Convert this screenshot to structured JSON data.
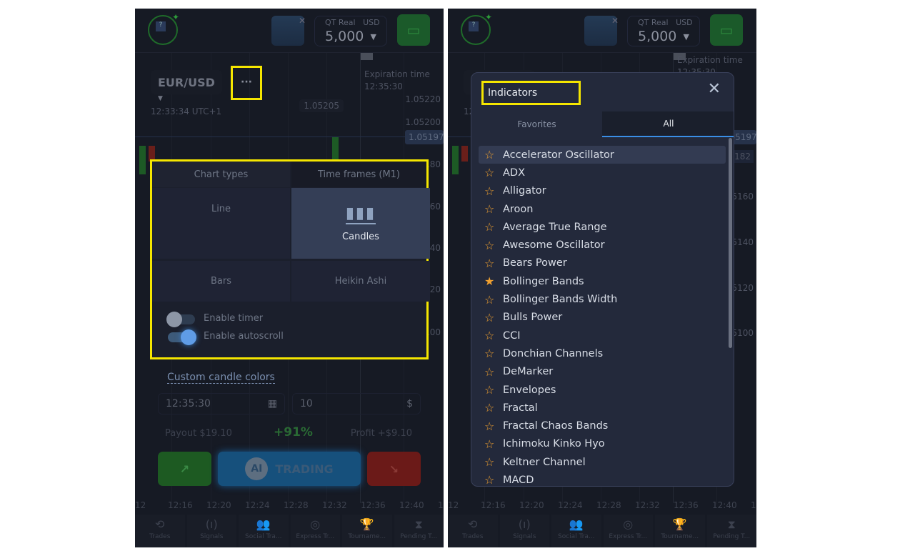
{
  "header": {
    "balance_label": "QT Real",
    "currency": "USD",
    "balance": "5,000"
  },
  "chart": {
    "pair": "EUR/USD",
    "more_label": "···",
    "time": "12:33:34 UTC+1",
    "expiration_label": "Expiration time",
    "expiration_time": "12:35:30",
    "price_marker": "1.05205",
    "current_price": "1.05197",
    "prices": [
      "1.05220",
      "1.05200",
      "1.05180",
      "1.05160",
      "1.05140",
      "1.05120",
      "1.05100"
    ],
    "right_prices": [
      "1.05182",
      "1.05160",
      "1.05140",
      "1.05120",
      "1.05100"
    ],
    "time_axis": [
      "12",
      "12:16",
      "12:20",
      "12:24",
      "12:28",
      "12:32",
      "12:36",
      "12:40",
      "12:"
    ]
  },
  "chart_settings": {
    "tab_chart_types": "Chart types",
    "tab_time_frames": "Time frames (M1)",
    "types": [
      "Line",
      "Candles",
      "Bars",
      "Heikin Ashi"
    ],
    "selected_type": "Candles",
    "enable_timer": "Enable timer",
    "enable_timer_on": false,
    "enable_autoscroll": "Enable autoscroll",
    "enable_autoscroll_on": true
  },
  "custom_candle_colors": "Custom candle colors",
  "trade": {
    "time": "12:35:30",
    "amount": "10",
    "payout_label": "Payout",
    "payout": "$19.10",
    "percent": "+91%",
    "profit_label": "Profit",
    "profit": "+$9.10",
    "ai_label": "AI",
    "trading_label": "TRADING"
  },
  "nav": [
    "Trades",
    "Signals",
    "Social Tra...",
    "Express Tr...",
    "Tourname...",
    "Pending T..."
  ],
  "indicators": {
    "title": "Indicators",
    "tabs": [
      "Favorites",
      "All"
    ],
    "active_tab": "All",
    "items": [
      {
        "label": "Accelerator Oscillator",
        "fav": false
      },
      {
        "label": "ADX",
        "fav": false
      },
      {
        "label": "Alligator",
        "fav": false
      },
      {
        "label": "Aroon",
        "fav": false
      },
      {
        "label": "Average True Range",
        "fav": false
      },
      {
        "label": "Awesome Oscillator",
        "fav": false
      },
      {
        "label": "Bears Power",
        "fav": false
      },
      {
        "label": "Bollinger Bands",
        "fav": true
      },
      {
        "label": "Bollinger Bands Width",
        "fav": false
      },
      {
        "label": "Bulls Power",
        "fav": false
      },
      {
        "label": "CCI",
        "fav": false
      },
      {
        "label": "Donchian Channels",
        "fav": false
      },
      {
        "label": "DeMarker",
        "fav": false
      },
      {
        "label": "Envelopes",
        "fav": false
      },
      {
        "label": "Fractal",
        "fav": false
      },
      {
        "label": "Fractal Chaos Bands",
        "fav": false
      },
      {
        "label": "Ichimoku Kinko Hyo",
        "fav": false
      },
      {
        "label": "Keltner Channel",
        "fav": false
      },
      {
        "label": "MACD",
        "fav": false
      }
    ]
  },
  "colors": {
    "highlight": "#f5e600",
    "star": "#f0a030",
    "accent": "#3a8ee6"
  }
}
